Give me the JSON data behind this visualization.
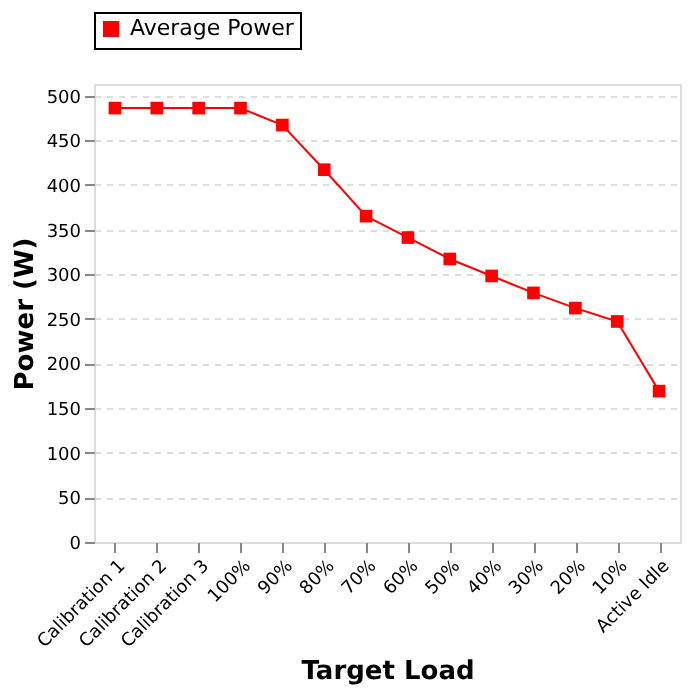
{
  "chart_data": {
    "type": "line",
    "xlabel": "Target Load",
    "ylabel": "Power (W)",
    "categories": [
      "Calibration 1",
      "Calibration 2",
      "Calibration 3",
      "100%",
      "90%",
      "80%",
      "70%",
      "60%",
      "50%",
      "40%",
      "30%",
      "20%",
      "10%",
      "Active Idle"
    ],
    "series": [
      {
        "name": "Average Power",
        "color": "#ff0000",
        "values": [
          486,
          486,
          486,
          486,
          467,
          417,
          365,
          341,
          317,
          298,
          279,
          262,
          247,
          169
        ]
      }
    ],
    "ylim": [
      0,
      513
    ],
    "yticks": [
      0,
      50,
      100,
      150,
      200,
      250,
      300,
      350,
      400,
      450,
      500
    ],
    "grid": "y",
    "legend": "top",
    "marker": "square",
    "line_style": "solid"
  }
}
